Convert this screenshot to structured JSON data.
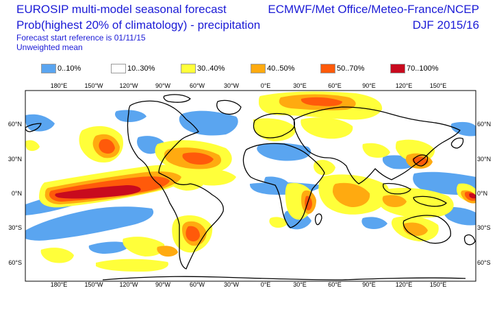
{
  "header": {
    "title": "EUROSIP multi-model seasonal forecast",
    "subtitle": "Prob(highest 20% of climatology) - precipitation",
    "start_ref": "Forecast start reference is 01/11/15",
    "mean": "Unweighted mean",
    "centres": "ECMWF/Met Office/Meteo-France/NCEP",
    "season": "DJF 2015/16"
  },
  "legend": [
    {
      "label": "0..10%",
      "color": "#5aa5f0"
    },
    {
      "label": "10..30%",
      "color": "#ffffff"
    },
    {
      "label": "30..40%",
      "color": "#ffff3a"
    },
    {
      "label": "40..50%",
      "color": "#ffaa10"
    },
    {
      "label": "50..70%",
      "color": "#ff5a0a"
    },
    {
      "label": "70..100%",
      "color": "#c80a1e"
    }
  ],
  "axes": {
    "lon_top": [
      "180°E",
      "150°W",
      "120°W",
      "90°W",
      "60°W",
      "30°W",
      "0°E",
      "30°E",
      "60°E",
      "90°E",
      "120°E",
      "150°E"
    ],
    "lon_bottom": [
      "180°E",
      "150°W",
      "120°W",
      "90°W",
      "60°W",
      "30°W",
      "0°E",
      "30°E",
      "60°E",
      "90°E",
      "120°E",
      "150°E"
    ],
    "lat_left": [
      "60°N",
      "30°N",
      "0°N",
      "30°S",
      "60°S"
    ],
    "lat_right": [
      "60°N",
      "30°N",
      "0°N",
      "30°S",
      "60°S"
    ]
  }
}
